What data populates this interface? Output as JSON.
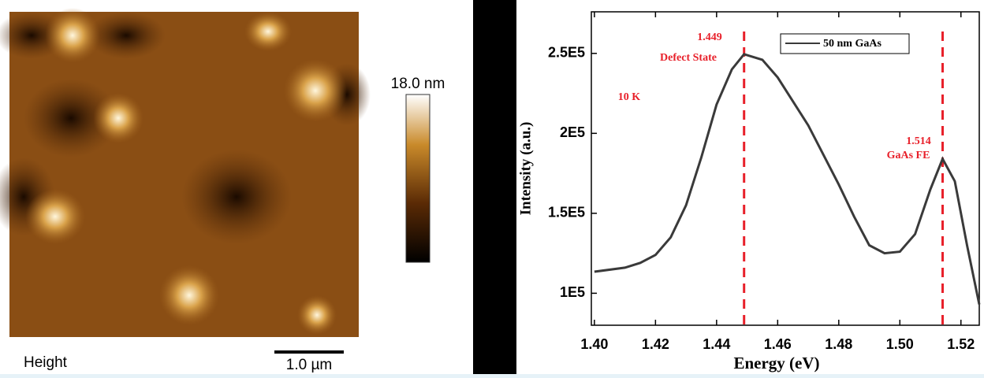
{
  "afm_image": {
    "label": "Height",
    "scale_bar": "1.0 µm",
    "colorbar_max": "18.0 nm"
  },
  "chart_data": {
    "type": "line",
    "x_label": "Energy (eV)",
    "y_label": "Intensity (a.u.)",
    "annotations": [
      "1.449",
      "Defect State",
      "10 K",
      "1.514",
      "GaAs FE"
    ],
    "vlines": [
      1.449,
      1.514
    ],
    "vline_color": "#e8202a",
    "x": [
      1.4,
      1.41,
      1.415,
      1.42,
      1.425,
      1.43,
      1.435,
      1.44,
      1.445,
      1.449,
      1.455,
      1.46,
      1.47,
      1.48,
      1.485,
      1.49,
      1.495,
      1.5,
      1.505,
      1.51,
      1.514,
      1.518,
      1.522,
      1.526
    ],
    "series": [
      {
        "name": "50 nm GaAs",
        "color": "#3a3a3a",
        "values": [
          113500,
          116000,
          119000,
          124000,
          135000,
          155000,
          185000,
          218000,
          240000,
          249500,
          246000,
          235000,
          205000,
          168000,
          148000,
          130000,
          125000,
          126000,
          137000,
          165000,
          184000,
          170000,
          130000,
          93000
        ]
      }
    ],
    "xlim": [
      1.399,
      1.526
    ],
    "ylim": [
      80000,
      276000
    ],
    "xticks": [
      {
        "value": 1.4,
        "label": "1.40"
      },
      {
        "value": 1.42,
        "label": "1.42"
      },
      {
        "value": 1.44,
        "label": "1.44"
      },
      {
        "value": 1.46,
        "label": "1.46"
      },
      {
        "value": 1.48,
        "label": "1.48"
      },
      {
        "value": 1.5,
        "label": "1.50"
      },
      {
        "value": 1.52,
        "label": "1.52"
      }
    ],
    "yticks": [
      {
        "value": 100000,
        "label": "1E5"
      },
      {
        "value": 150000,
        "label": "1.5E5"
      },
      {
        "value": 200000,
        "label": "2E5"
      },
      {
        "value": 250000,
        "label": "2.5E5"
      }
    ],
    "grid": false
  }
}
